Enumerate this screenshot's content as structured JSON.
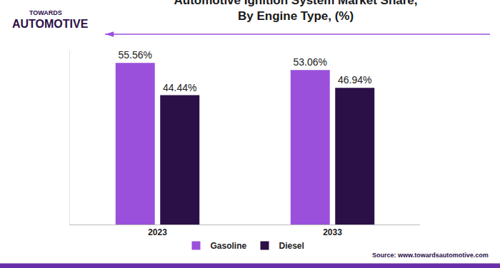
{
  "chart_data": {
    "type": "bar",
    "title": "Automotive Ignition System Market Share, By Engine Type, (%)",
    "categories": [
      "2023",
      "2033"
    ],
    "series": [
      {
        "name": "Gasoline",
        "color": "#9b50dc",
        "values": [
          55.56,
          53.06
        ],
        "value_labels": [
          "55.56%",
          "53.06%"
        ]
      },
      {
        "name": "Diesel",
        "color": "#2b0f47",
        "values": [
          44.44,
          46.94
        ],
        "value_labels": [
          "44.44%",
          "46.94%"
        ]
      }
    ],
    "ylim": [
      0,
      60
    ],
    "yticks": [],
    "data_labels": true,
    "tick_labels": "x",
    "legend": "bottom",
    "grid": false,
    "annotations": [
      "TOWARDS",
      "AUTOMOTIVE",
      "Source: www.towardsautomotive.com"
    ]
  }
}
